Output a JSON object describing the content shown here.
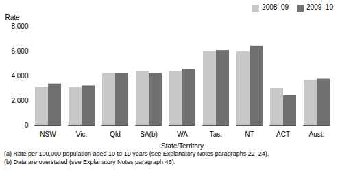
{
  "chart_data": {
    "type": "bar",
    "categories": [
      "NSW",
      "Vic.",
      "Qld",
      "SA(b)",
      "WA",
      "Tas.",
      "NT",
      "ACT",
      "Aust."
    ],
    "series": [
      {
        "name": "2008–09",
        "color": "#c8c8c8",
        "values": [
          3100,
          3050,
          4200,
          4350,
          4350,
          5950,
          5950,
          3000,
          3650
        ]
      },
      {
        "name": "2009–10",
        "color": "#707070",
        "values": [
          3350,
          3200,
          4200,
          4200,
          4550,
          6050,
          6400,
          2400,
          3750
        ]
      }
    ],
    "xlabel": "State/Territory",
    "ylabel": "Rate",
    "ylim": [
      0,
      8000
    ],
    "yticks": [
      0,
      2000,
      4000,
      6000,
      8000
    ],
    "legend": "upper right",
    "grid": false,
    "annotations": [
      "(a) Rate per 100,000 population aged 10 to 19 years (see Explanatory Notes paragraphs 22–24).",
      "(b) Data are overstated (see Explanatory Notes paragraph 46)."
    ]
  }
}
